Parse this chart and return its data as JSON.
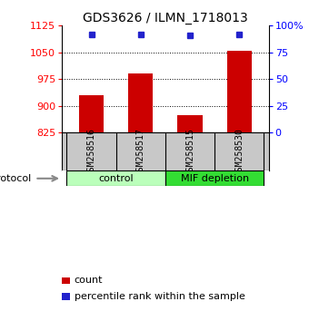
{
  "title": "GDS3626 / ILMN_1718013",
  "samples": [
    "GSM258516",
    "GSM258517",
    "GSM258515",
    "GSM258530"
  ],
  "counts": [
    930,
    990,
    875,
    1055
  ],
  "percentile_ranks": [
    92,
    92,
    91,
    92
  ],
  "ylim_left": [
    825,
    1125
  ],
  "yticks_left": [
    825,
    900,
    975,
    1050,
    1125
  ],
  "ylim_right": [
    0,
    100
  ],
  "yticks_right": [
    0,
    25,
    50,
    75,
    100
  ],
  "ytick_labels_right": [
    "0",
    "25",
    "50",
    "75",
    "100%"
  ],
  "bar_color": "#cc0000",
  "dot_color": "#2222cc",
  "groups": [
    {
      "label": "control",
      "indices": [
        0,
        1
      ],
      "color": "#bbffbb"
    },
    {
      "label": "MIF depletion",
      "indices": [
        2,
        3
      ],
      "color": "#33dd33"
    }
  ],
  "protocol_label": "protocol",
  "background_color": "#ffffff",
  "label_area_color": "#c8c8c8",
  "title_fontsize": 10,
  "tick_fontsize": 8,
  "axis_label_fontsize": 8,
  "legend_fontsize": 8,
  "sample_fontsize": 7
}
